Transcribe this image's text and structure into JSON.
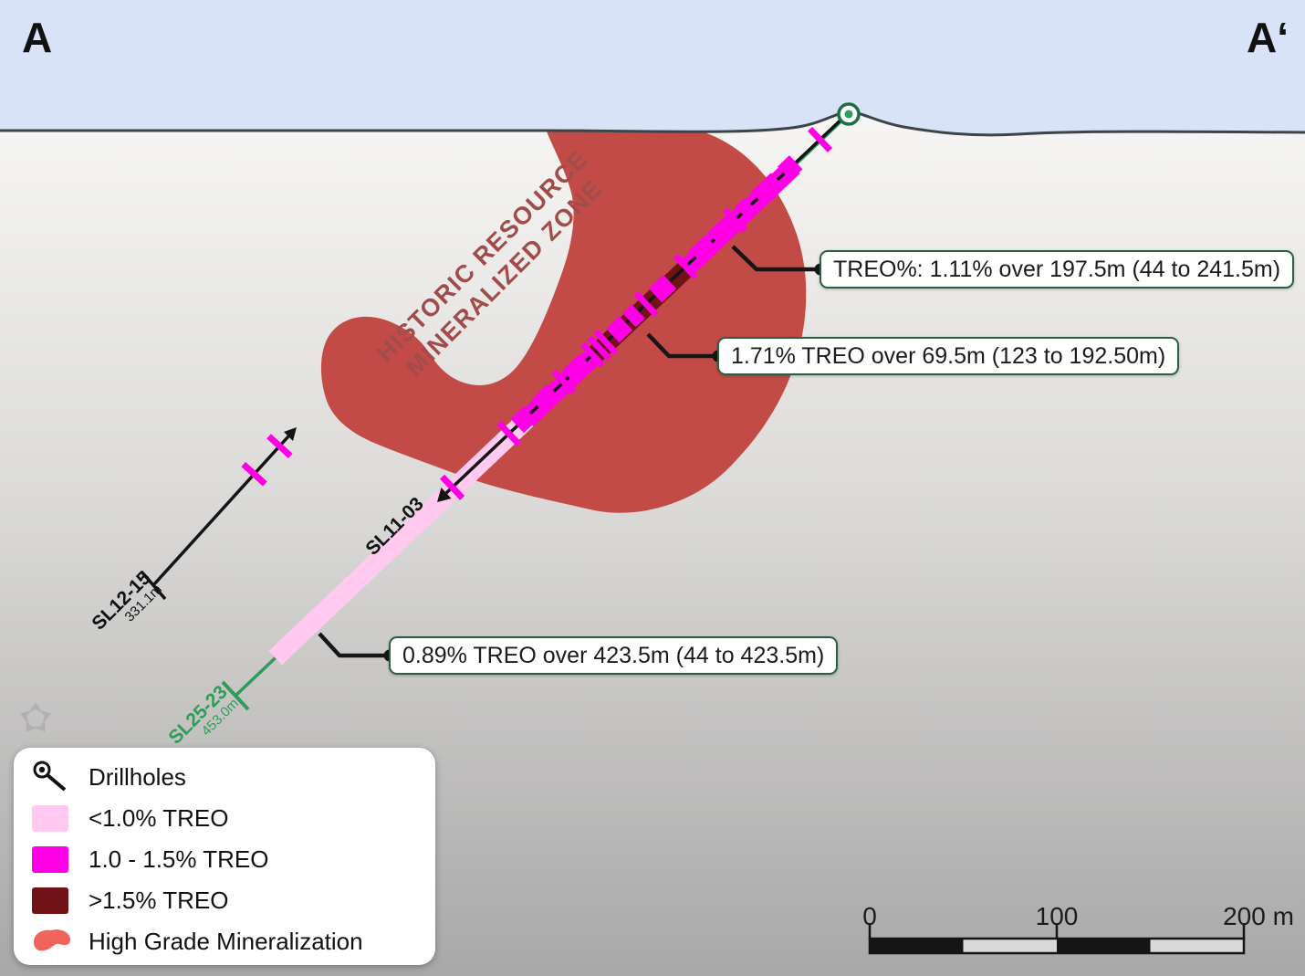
{
  "section": {
    "left_label": "A",
    "right_label": "A‘"
  },
  "zone_label": {
    "line1": "HISTORIC RESOURCE",
    "line2": "MINERALIZED ZONE"
  },
  "callouts": [
    {
      "text": "TREO%: 1.11% over 197.5m (44 to 241.5m)"
    },
    {
      "text": "1.71% TREO over 69.5m (123 to 192.50m)"
    },
    {
      "text": "0.89% TREO over 423.5m (44 to 423.5m)"
    }
  ],
  "drillholes": {
    "sl25": {
      "name": "SL25-23",
      "depth_label": "453.0m",
      "collar": [
        930,
        125
      ],
      "eoh": [
        258,
        762
      ],
      "grade_band": [
        {
          "t0": 0.09,
          "t1": 0.268,
          "color": "grade_mid"
        },
        {
          "t0": 0.268,
          "t1": 0.415,
          "color": "grade_high"
        },
        {
          "t0": 0.415,
          "t1": 0.525,
          "color": "grade_mid"
        },
        {
          "t0": 0.525,
          "t1": 0.935,
          "color": "grade_low"
        }
      ]
    },
    "sl11": {
      "name": "SL11-03",
      "start": [
        927,
        126
      ],
      "end": [
        489,
        540
      ],
      "marks": [
        {
          "t": 0.065,
          "kind": "tick"
        },
        {
          "t": 0.14,
          "len": 18,
          "kind": "box"
        },
        {
          "t": 0.196,
          "len": 30,
          "kind": "box"
        },
        {
          "t": 0.249,
          "len": 14,
          "kind": "box"
        },
        {
          "t": 0.278,
          "kind": "tick"
        },
        {
          "t": 0.306,
          "len": 28,
          "kind": "box"
        },
        {
          "t": 0.356,
          "len": 24,
          "kind": "box"
        },
        {
          "t": 0.401,
          "kind": "tick"
        },
        {
          "t": 0.459,
          "len": 22,
          "kind": "box"
        },
        {
          "t": 0.5,
          "kind": "tick"
        },
        {
          "t": 0.531,
          "len": 14,
          "kind": "box"
        },
        {
          "t": 0.567,
          "len": 20,
          "kind": "box"
        },
        {
          "t": 0.601,
          "kind": "tick"
        },
        {
          "t": 0.617,
          "kind": "tick"
        },
        {
          "t": 0.634,
          "kind": "tick"
        },
        {
          "t": 0.672,
          "len": 26,
          "kind": "box"
        },
        {
          "t": 0.706,
          "kind": "tick"
        },
        {
          "t": 0.751,
          "len": 24,
          "kind": "box"
        },
        {
          "t": 0.806,
          "len": 20,
          "kind": "box"
        },
        {
          "t": 0.843,
          "kind": "tick"
        },
        {
          "t": 0.985,
          "kind": "tick"
        }
      ]
    },
    "sl12": {
      "name": "SL12-15",
      "depth_label": "331.1m",
      "start": [
        168,
        641
      ],
      "end": [
        316,
        478
      ],
      "marks": [
        {
          "t": 0.747,
          "kind": "tick"
        },
        {
          "t": 0.935,
          "kind": "tick"
        }
      ]
    }
  },
  "legend": {
    "items": [
      {
        "label": "Drillholes",
        "icon": "drillhole-icon"
      },
      {
        "label": "<1.0% TREO",
        "icon": "swatch",
        "color_key": "grade_low"
      },
      {
        "label": "1.0 - 1.5% TREO",
        "icon": "swatch",
        "color_key": "grade_mid"
      },
      {
        "label": ">1.5% TREO",
        "icon": "swatch",
        "color_key": "grade_high"
      },
      {
        "label": "High Grade Mineralization",
        "icon": "blob-icon",
        "color_key": "legend_blob"
      }
    ]
  },
  "scale_bar": {
    "tick_labels": [
      "0",
      "100",
      "200 m"
    ]
  },
  "colors": {
    "sky": "#D8E3F8",
    "surface": "#3E4349",
    "blob": "#C24B47",
    "zone_text": "#A14C4B",
    "grade_low": "#FFC9F0",
    "grade_mid": "#FF00E6",
    "grade_high": "#701216",
    "trace_green": "#2F9C59",
    "collar_ring": "#1C6F42",
    "callout_border": "#2B5F41",
    "leader": "#161616",
    "legend_blob": "#EF655C",
    "watermark": "#8E8E8E"
  }
}
